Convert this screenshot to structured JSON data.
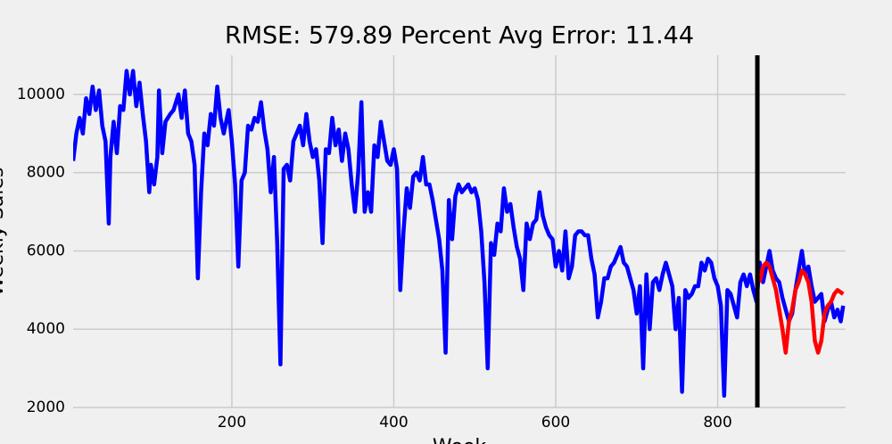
{
  "chart_data": {
    "type": "line",
    "title": "RMSE: 579.89     Percent Avg Error: 11.44",
    "xlabel": "Week",
    "ylabel": "Weekly Sales",
    "xlim": [
      4,
      958
    ],
    "ylim": [
      2000,
      11000
    ],
    "xticks": [
      200,
      400,
      600,
      800
    ],
    "yticks": [
      2000,
      4000,
      6000,
      8000,
      10000
    ],
    "grid": true,
    "vline": {
      "x": 849,
      "color": "#000000"
    },
    "series": [
      {
        "color": "#0000ff",
        "x": [
          4,
          8,
          12,
          16,
          20,
          24,
          28,
          32,
          36,
          40,
          44,
          48,
          50,
          54,
          58,
          62,
          66,
          70,
          74,
          78,
          82,
          86,
          90,
          94,
          98,
          100,
          104,
          108,
          110,
          114,
          118,
          124,
          128,
          134,
          138,
          142,
          146,
          150,
          154,
          158,
          162,
          166,
          170,
          174,
          178,
          182,
          186,
          190,
          196,
          200,
          204,
          208,
          212,
          216,
          220,
          224,
          228,
          232,
          236,
          240,
          244,
          248,
          252,
          256,
          260,
          264,
          268,
          272,
          276,
          280,
          284,
          288,
          292,
          296,
          300,
          304,
          308,
          312,
          316,
          320,
          324,
          328,
          332,
          336,
          340,
          344,
          348,
          352,
          356,
          360,
          364,
          368,
          372,
          376,
          380,
          384,
          388,
          392,
          396,
          400,
          404,
          408,
          412,
          416,
          420,
          424,
          428,
          432,
          436,
          440,
          444,
          448,
          452,
          456,
          460,
          464,
          468,
          472,
          476,
          480,
          484,
          488,
          492,
          496,
          500,
          504,
          508,
          512,
          516,
          520,
          524,
          528,
          532,
          536,
          540,
          544,
          548,
          552,
          556,
          560,
          564,
          568,
          572,
          576,
          580,
          584,
          588,
          592,
          596,
          600,
          604,
          608,
          612,
          616,
          620,
          624,
          628,
          632,
          636,
          640,
          644,
          648,
          652,
          656,
          660,
          664,
          668,
          672,
          676,
          680,
          684,
          688,
          692,
          696,
          700,
          704,
          708,
          712,
          716,
          720,
          724,
          728,
          732,
          736,
          740,
          744,
          748,
          752,
          756,
          760,
          764,
          768,
          772,
          776,
          780,
          784,
          788,
          792,
          796,
          800,
          804,
          808,
          812,
          816,
          820,
          824,
          828,
          832,
          836,
          840,
          844,
          848,
          852,
          856,
          860,
          864,
          868,
          872,
          876,
          880,
          884,
          888,
          892,
          896,
          900,
          904,
          908,
          912,
          916,
          920,
          924,
          928,
          932,
          936,
          940,
          944,
          948,
          952,
          955
        ],
        "values": [
          8300,
          9000,
          9400,
          9000,
          9900,
          9500,
          10200,
          9600,
          10100,
          9200,
          8800,
          6700,
          8400,
          9300,
          8500,
          9700,
          9600,
          10600,
          10000,
          10600,
          9700,
          10300,
          9500,
          8800,
          7500,
          8200,
          7700,
          8400,
          10100,
          8500,
          9300,
          9500,
          9600,
          10000,
          9400,
          10100,
          9000,
          8800,
          8200,
          5300,
          7500,
          9000,
          8700,
          9500,
          9200,
          10200,
          9400,
          9000,
          9600,
          8800,
          7700,
          5600,
          7800,
          8000,
          9200,
          9100,
          9400,
          9300,
          9800,
          9100,
          8600,
          7500,
          8400,
          6200,
          3100,
          8100,
          8200,
          7800,
          8800,
          9000,
          9200,
          8700,
          9500,
          8800,
          8400,
          8600,
          7800,
          6200,
          8600,
          8500,
          9400,
          8700,
          9100,
          8300,
          9000,
          8600,
          7700,
          7000,
          8000,
          9800,
          7000,
          7500,
          7000,
          8700,
          8400,
          9300,
          8800,
          8300,
          8200,
          8600,
          8100,
          5000,
          6500,
          7600,
          7100,
          7900,
          8000,
          7800,
          8400,
          7700,
          7700,
          7300,
          6800,
          6300,
          5500,
          3400,
          7300,
          6300,
          7400,
          7700,
          7500,
          7600,
          7700,
          7500,
          7600,
          7300,
          6500,
          5200,
          3000,
          6200,
          5900,
          6700,
          6500,
          7600,
          7000,
          7200,
          6600,
          6100,
          5800,
          5000,
          6700,
          6300,
          6700,
          6800,
          7500,
          6900,
          6600,
          6400,
          6300,
          5600,
          6000,
          5500,
          6500,
          5300,
          5600,
          6400,
          6500,
          6500,
          6400,
          6400,
          5800,
          5400,
          4300,
          4700,
          5300,
          5300,
          5600,
          5700,
          5900,
          6100,
          5700,
          5600,
          5300,
          5000,
          4400,
          5100,
          3000,
          5400,
          4000,
          5200,
          5300,
          5000,
          5400,
          5700,
          5400,
          5100,
          4000,
          4800,
          2400,
          5000,
          4800,
          4900,
          5100,
          5100,
          5700,
          5500,
          5800,
          5700,
          5300,
          5100,
          4600,
          2300,
          5000,
          4900,
          4600,
          4300,
          5200,
          5400,
          5100,
          5400,
          5000,
          4700,
          5700,
          5200,
          5600,
          6000,
          5500,
          5300,
          5200,
          4800,
          4500,
          4200,
          4400,
          5000,
          5500,
          6000,
          5400,
          5600,
          5100,
          4700,
          4800,
          4900,
          4200,
          4500,
          4700,
          4300,
          4500,
          4200,
          4600
        ]
      },
      {
        "color": "#ff0000",
        "x": [
          852,
          856,
          860,
          864,
          868,
          872,
          876,
          880,
          884,
          888,
          892,
          896,
          900,
          904,
          908,
          912,
          916,
          920,
          924,
          928,
          932,
          936,
          940,
          944,
          948,
          955
        ],
        "values": [
          5200,
          5600,
          5700,
          5600,
          5300,
          5000,
          4500,
          4000,
          3400,
          4200,
          4500,
          5000,
          5200,
          5500,
          5400,
          5200,
          4700,
          3700,
          3400,
          3700,
          4400,
          4600,
          4700,
          4900,
          5000,
          4900
        ]
      }
    ]
  }
}
